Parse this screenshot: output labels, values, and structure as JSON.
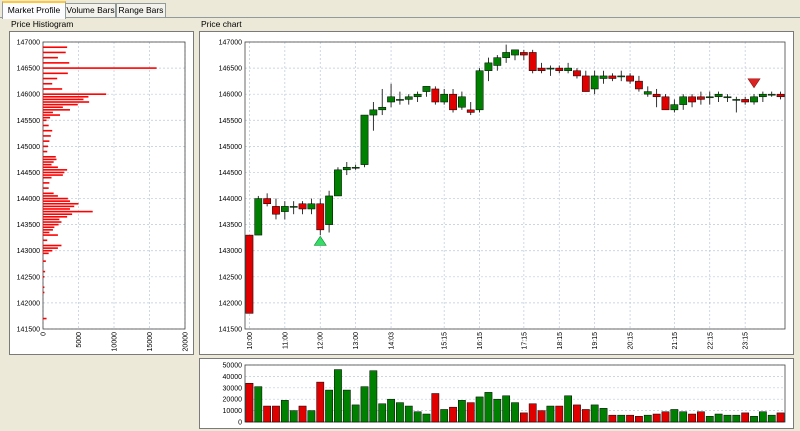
{
  "tabs": [
    {
      "label": "Market Profile",
      "active": true
    },
    {
      "label": "Volume Bars",
      "active": false
    },
    {
      "label": "Range Bars",
      "active": false
    }
  ],
  "histogram_title": "Price Histiogram",
  "chart_title": "Price chart",
  "colors": {
    "up": "#008000",
    "down": "#e00000",
    "grid": "#b8c8dc",
    "marker_up": "#33dd66",
    "marker_down": "#dd2222"
  },
  "chart_data": [
    {
      "type": "bar",
      "orientation": "horizontal",
      "ylim": [
        141500,
        147000
      ],
      "xlim": [
        0,
        20000
      ],
      "yticks": [
        "147000",
        "146500",
        "146000",
        "145500",
        "145000",
        "144500",
        "144000",
        "143500",
        "143000",
        "142500",
        "142000",
        "141500"
      ],
      "xticks": [
        "0",
        "5000",
        "10000",
        "15000",
        "20000"
      ],
      "bins": [
        [
          146900,
          3400
        ],
        [
          146800,
          3200
        ],
        [
          146700,
          2100
        ],
        [
          146600,
          3700
        ],
        [
          146500,
          16000
        ],
        [
          146400,
          3500
        ],
        [
          146300,
          2000
        ],
        [
          146200,
          1300
        ],
        [
          146100,
          2700
        ],
        [
          146000,
          8900
        ],
        [
          145950,
          6400
        ],
        [
          145900,
          5700
        ],
        [
          145850,
          6500
        ],
        [
          145800,
          4900
        ],
        [
          145750,
          2800
        ],
        [
          145700,
          3800
        ],
        [
          145650,
          1400
        ],
        [
          145600,
          2400
        ],
        [
          145550,
          1000
        ],
        [
          145500,
          500
        ],
        [
          145400,
          800
        ],
        [
          145300,
          1300
        ],
        [
          145200,
          1100
        ],
        [
          145100,
          900
        ],
        [
          145000,
          700
        ],
        [
          144900,
          600
        ],
        [
          144800,
          1800
        ],
        [
          144750,
          1900
        ],
        [
          144700,
          1500
        ],
        [
          144650,
          1200
        ],
        [
          144600,
          2100
        ],
        [
          144550,
          3400
        ],
        [
          144500,
          3000
        ],
        [
          144450,
          2800
        ],
        [
          144400,
          1200
        ],
        [
          144300,
          900
        ],
        [
          144200,
          800
        ],
        [
          144100,
          1500
        ],
        [
          144050,
          2100
        ],
        [
          144000,
          3500
        ],
        [
          143950,
          3800
        ],
        [
          143900,
          5000
        ],
        [
          143850,
          4400
        ],
        [
          143800,
          3800
        ],
        [
          143750,
          7000
        ],
        [
          143700,
          4100
        ],
        [
          143650,
          3400
        ],
        [
          143600,
          2300
        ],
        [
          143550,
          2600
        ],
        [
          143500,
          2200
        ],
        [
          143450,
          1600
        ],
        [
          143400,
          1400
        ],
        [
          143350,
          900
        ],
        [
          143300,
          2100
        ],
        [
          143200,
          600
        ],
        [
          143100,
          2600
        ],
        [
          143050,
          2100
        ],
        [
          143000,
          1300
        ],
        [
          142950,
          800
        ],
        [
          142800,
          400
        ],
        [
          142600,
          300
        ],
        [
          142500,
          200
        ],
        [
          142300,
          200
        ],
        [
          142200,
          200
        ],
        [
          141700,
          500
        ]
      ]
    },
    {
      "type": "candlestick",
      "ylim": [
        141500,
        147000
      ],
      "yticks": [
        "147000",
        "146500",
        "146000",
        "145500",
        "145000",
        "144500",
        "144000",
        "143500",
        "143000",
        "142500",
        "142000",
        "141500"
      ],
      "xticks": [
        {
          "label": "10:00",
          "at": 0
        },
        {
          "label": "11:00",
          "at": 4
        },
        {
          "label": "12:00",
          "at": 8
        },
        {
          "label": "13:00",
          "at": 12
        },
        {
          "label": "14:03",
          "at": 16
        },
        {
          "label": "15:15",
          "at": 22
        },
        {
          "label": "16:15",
          "at": 26
        },
        {
          "label": "17:15",
          "at": 31
        },
        {
          "label": "18:15",
          "at": 35
        },
        {
          "label": "19:15",
          "at": 39
        },
        {
          "label": "20:15",
          "at": 43
        },
        {
          "label": "21:15",
          "at": 48
        },
        {
          "label": "22:15",
          "at": 52
        },
        {
          "label": "23:15",
          "at": 56
        }
      ],
      "candles": [
        [
          143300,
          143300,
          141800,
          141800
        ],
        [
          143300,
          144050,
          143300,
          144000
        ],
        [
          144000,
          144100,
          143850,
          143900
        ],
        [
          143850,
          144000,
          143600,
          143700
        ],
        [
          143750,
          143950,
          143600,
          143850
        ],
        [
          143850,
          143950,
          143700,
          143850
        ],
        [
          143900,
          143950,
          143700,
          143800
        ],
        [
          143800,
          144000,
          143700,
          143900
        ],
        [
          143900,
          144000,
          143300,
          143400
        ],
        [
          143500,
          144150,
          143350,
          144050
        ],
        [
          144050,
          144600,
          144050,
          144550
        ],
        [
          144550,
          144700,
          144450,
          144600
        ],
        [
          144600,
          144650,
          144550,
          144600
        ],
        [
          144650,
          145600,
          144600,
          145600
        ],
        [
          145600,
          145850,
          145300,
          145700
        ],
        [
          145700,
          146100,
          145600,
          145750
        ],
        [
          145850,
          146200,
          145750,
          145950
        ],
        [
          145900,
          146050,
          145800,
          145900
        ],
        [
          145900,
          146000,
          145800,
          145950
        ],
        [
          145950,
          146050,
          145850,
          146000
        ],
        [
          146050,
          146150,
          145950,
          146150
        ],
        [
          146100,
          146150,
          145800,
          145850
        ],
        [
          145850,
          146100,
          145800,
          146000
        ],
        [
          146000,
          146100,
          145650,
          145700
        ],
        [
          145750,
          146050,
          145700,
          145950
        ],
        [
          145700,
          145850,
          145600,
          145650
        ],
        [
          145700,
          146500,
          145650,
          146450
        ],
        [
          146450,
          146700,
          146250,
          146600
        ],
        [
          146550,
          146750,
          146450,
          146700
        ],
        [
          146700,
          146950,
          146600,
          146800
        ],
        [
          146750,
          146850,
          146650,
          146850
        ],
        [
          146800,
          146850,
          146650,
          146750
        ],
        [
          146800,
          146850,
          146400,
          146450
        ],
        [
          146500,
          146600,
          146400,
          146450
        ],
        [
          146500,
          146550,
          146350,
          146500
        ],
        [
          146500,
          146550,
          146400,
          146450
        ],
        [
          146450,
          146600,
          146400,
          146500
        ],
        [
          146450,
          146500,
          146300,
          146350
        ],
        [
          146350,
          146450,
          146050,
          146050
        ],
        [
          146100,
          146450,
          146000,
          146350
        ],
        [
          146300,
          146450,
          146200,
          146350
        ],
        [
          146350,
          146400,
          146250,
          146300
        ],
        [
          146350,
          146450,
          146250,
          146350
        ],
        [
          146350,
          146400,
          146200,
          146250
        ],
        [
          146250,
          146350,
          146050,
          146100
        ],
        [
          146000,
          146150,
          145950,
          146050
        ],
        [
          146000,
          146100,
          145750,
          145950
        ],
        [
          145950,
          146000,
          145700,
          145700
        ],
        [
          145700,
          145900,
          145650,
          145800
        ],
        [
          145800,
          146000,
          145700,
          145950
        ],
        [
          145950,
          146000,
          145750,
          145850
        ],
        [
          145950,
          146050,
          145800,
          145900
        ],
        [
          145950,
          146050,
          145800,
          145950
        ],
        [
          145950,
          146050,
          145850,
          146000
        ],
        [
          145950,
          146000,
          145850,
          145950
        ],
        [
          145900,
          145950,
          145650,
          145900
        ],
        [
          145900,
          145950,
          145800,
          145850
        ],
        [
          145850,
          146000,
          145800,
          145950
        ],
        [
          145950,
          146050,
          145850,
          146000
        ],
        [
          146000,
          146050,
          145950,
          146000
        ],
        [
          146000,
          146050,
          145900,
          145950
        ]
      ],
      "markers": [
        {
          "index": 8,
          "type": "up",
          "price": 143200
        },
        {
          "index": 57,
          "type": "down",
          "price": 146200
        }
      ]
    },
    {
      "type": "bar",
      "ylim": [
        0,
        50000
      ],
      "yticks": [
        "50000",
        "40000",
        "30000",
        "20000",
        "10000",
        "0"
      ],
      "volumes": [
        34000,
        31000,
        14000,
        14000,
        19000,
        10000,
        14000,
        10000,
        35000,
        28000,
        46000,
        28000,
        15000,
        31000,
        45000,
        16000,
        20000,
        17000,
        14000,
        9000,
        7000,
        25000,
        11000,
        13000,
        19000,
        17000,
        22000,
        26000,
        20000,
        23000,
        17000,
        8000,
        16000,
        10000,
        14000,
        14000,
        23000,
        15000,
        11000,
        15000,
        12000,
        6000,
        6000,
        6000,
        5000,
        6000,
        7000,
        9000,
        11000,
        9000,
        7000,
        9000,
        5000,
        7000,
        6000,
        6000,
        8000,
        5000,
        9000,
        6000,
        8000
      ]
    }
  ]
}
